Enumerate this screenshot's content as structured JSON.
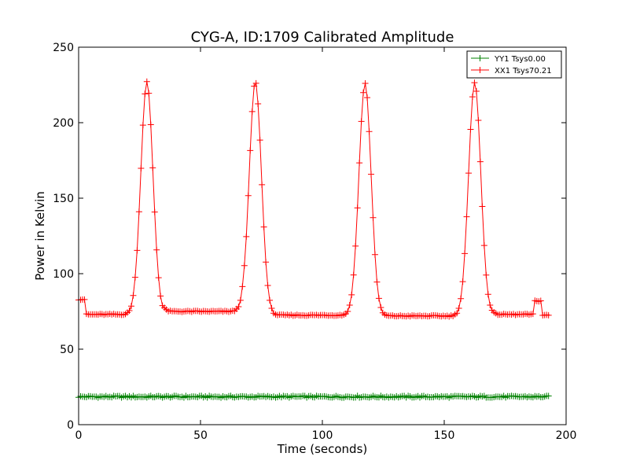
{
  "chart_data": {
    "type": "line",
    "title": "CYG-A, ID:1709 Calibrated Amplitude",
    "xlabel": "Time (seconds)",
    "ylabel": "Power in Kelvin",
    "xlim": [
      0,
      200
    ],
    "ylim": [
      0,
      250
    ],
    "xticks": [
      0,
      50,
      100,
      150,
      200
    ],
    "yticks": [
      0,
      50,
      100,
      150,
      200,
      250
    ],
    "grid": false,
    "legend_position": "top-right",
    "series": [
      {
        "name": "YY1 Tsys0.00",
        "color": "#008000",
        "marker": "plus",
        "x_range": [
          0,
          193
        ],
        "baseline": 18.5
      },
      {
        "name": "XX1 Tsys70.21",
        "color": "#ff0000",
        "marker": "plus",
        "x_range": [
          0,
          193
        ],
        "baseline": 73,
        "peaks": [
          {
            "x": 28,
            "y": 227
          },
          {
            "x": 72.5,
            "y": 227
          },
          {
            "x": 117.5,
            "y": 226
          },
          {
            "x": 162.5,
            "y": 227
          }
        ],
        "peak_width": 4.5,
        "segment_levels": [
          {
            "from": 0,
            "to": 3,
            "y": 83
          },
          {
            "from": 3,
            "to": 50,
            "y": 73
          },
          {
            "from": 35,
            "to": 68,
            "y": 75
          },
          {
            "from": 78,
            "to": 112,
            "y": 72.5
          },
          {
            "from": 122,
            "to": 158,
            "y": 72
          },
          {
            "from": 168,
            "to": 187,
            "y": 73
          },
          {
            "from": 187,
            "to": 190,
            "y": 82
          },
          {
            "from": 190,
            "to": 193,
            "y": 72.5
          }
        ]
      }
    ]
  }
}
